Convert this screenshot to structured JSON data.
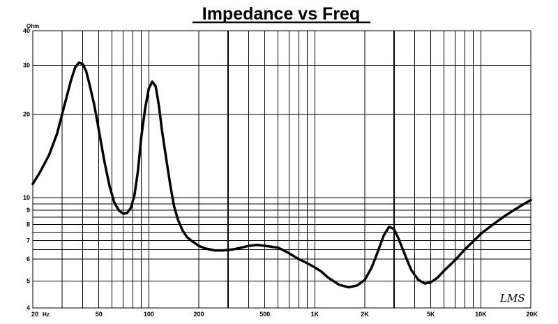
{
  "chart_data": {
    "type": "line",
    "title": "Impedance vs Freq",
    "ylabel": "Ohm",
    "x_scale": "log",
    "y_scale": "log",
    "xlim": [
      20,
      20000
    ],
    "ylim": [
      4,
      40
    ],
    "grid": true,
    "xticks": [
      {
        "value": 20,
        "label": "20"
      },
      {
        "value": 50,
        "label": "50"
      },
      {
        "value": 100,
        "label": "100"
      },
      {
        "value": 200,
        "label": "200"
      },
      {
        "value": 500,
        "label": "500"
      },
      {
        "value": 1000,
        "label": "1K"
      },
      {
        "value": 2000,
        "label": "2K"
      },
      {
        "value": 5000,
        "label": "5K"
      },
      {
        "value": 10000,
        "label": "10K"
      },
      {
        "value": 20000,
        "label": "20K"
      }
    ],
    "xunit": "Hz",
    "yticks": [
      {
        "value": 4,
        "label": "4"
      },
      {
        "value": 5,
        "label": "5"
      },
      {
        "value": 6,
        "label": "6"
      },
      {
        "value": 7,
        "label": "7"
      },
      {
        "value": 8,
        "label": "8"
      },
      {
        "value": 9,
        "label": "9"
      },
      {
        "value": 10,
        "label": "10"
      },
      {
        "value": 20,
        "label": "20"
      },
      {
        "value": 30,
        "label": "30"
      },
      {
        "value": 40,
        "label": "40"
      }
    ],
    "series": [
      {
        "x": [
          20,
          22,
          25,
          28,
          31,
          34,
          36,
          38,
          40,
          42,
          44,
          47,
          50,
          54,
          58,
          62,
          66,
          70,
          74,
          78,
          82,
          86,
          90,
          95,
          100,
          105,
          110,
          115,
          120,
          128,
          135,
          142,
          150,
          160,
          170,
          180,
          200,
          220,
          250,
          280,
          320,
          360,
          400,
          450,
          500,
          550,
          600,
          650,
          700,
          800,
          900,
          1000,
          1100,
          1200,
          1400,
          1600,
          1800,
          2000,
          2200,
          2400,
          2600,
          2800,
          3000,
          3200,
          3500,
          3800,
          4200,
          4600,
          5000,
          5500,
          6000,
          7000,
          8000,
          9000,
          10000,
          12000,
          14000,
          16000,
          18000,
          20000
        ],
        "y": [
          11.2,
          12.3,
          14.2,
          17.0,
          21.5,
          26.5,
          29.5,
          30.7,
          30.3,
          28.5,
          25.5,
          21.5,
          17.5,
          13.5,
          11.0,
          9.6,
          9.0,
          8.75,
          8.8,
          9.2,
          10.2,
          12.5,
          16.5,
          21.0,
          24.8,
          26.2,
          25.2,
          21.5,
          17.5,
          13.5,
          11.0,
          9.3,
          8.3,
          7.6,
          7.2,
          7.0,
          6.7,
          6.55,
          6.45,
          6.45,
          6.5,
          6.6,
          6.7,
          6.75,
          6.7,
          6.65,
          6.6,
          6.45,
          6.3,
          6.0,
          5.8,
          5.6,
          5.4,
          5.15,
          4.85,
          4.75,
          4.82,
          5.05,
          5.6,
          6.4,
          7.3,
          7.85,
          7.7,
          7.1,
          6.2,
          5.5,
          5.05,
          4.9,
          4.95,
          5.15,
          5.45,
          5.95,
          6.5,
          6.95,
          7.4,
          8.05,
          8.6,
          9.05,
          9.45,
          9.8
        ]
      }
    ]
  },
  "watermark": "LMS"
}
